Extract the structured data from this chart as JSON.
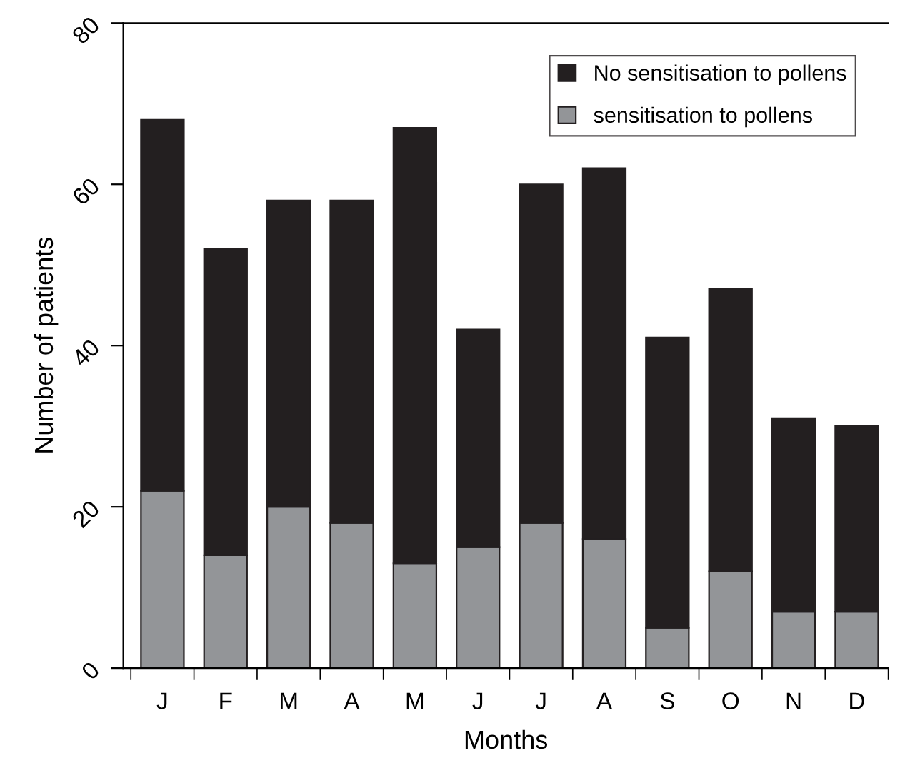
{
  "chart_data": {
    "type": "bar",
    "stacked": true,
    "xlabel": "Months",
    "ylabel": "Number of patients",
    "categories": [
      "J",
      "F",
      "M",
      "A",
      "M",
      "J",
      "J",
      "A",
      "S",
      "O",
      "N",
      "D"
    ],
    "series": [
      {
        "name": "sensitisation to pollens",
        "color": "#939598",
        "values": [
          22,
          14,
          20,
          18,
          13,
          15,
          18,
          16,
          5,
          12,
          7,
          7
        ]
      },
      {
        "name": "No sensitisation to pollens",
        "color": "#231f20",
        "values": [
          46,
          38,
          38,
          40,
          54,
          27,
          42,
          46,
          36,
          35,
          24,
          23
        ]
      }
    ],
    "ylim": [
      0,
      80
    ],
    "yticks": [
      0,
      20,
      40,
      60,
      80
    ],
    "grid": false,
    "legend": "top right"
  }
}
